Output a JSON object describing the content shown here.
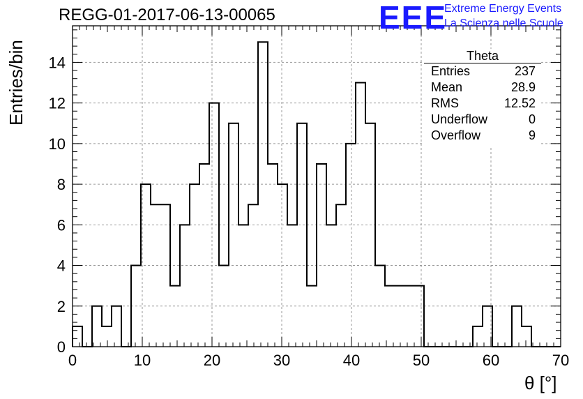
{
  "title": "REGG-01-2017-06-13-00065",
  "logo": {
    "mark": "EEE",
    "line1": "Extreme Energy Events",
    "line2": "La Scienza nelle Scuole",
    "color": "#1a1aff"
  },
  "stats": {
    "name": "Theta",
    "rows": [
      {
        "key": "Entries",
        "value": "237"
      },
      {
        "key": "Mean",
        "value": "28.9"
      },
      {
        "key": "RMS",
        "value": "12.52"
      },
      {
        "key": "Underflow",
        "value": "0"
      },
      {
        "key": "Overflow",
        "value": "9"
      }
    ]
  },
  "chart_data": {
    "type": "bar",
    "histogram": true,
    "xlabel": "θ [°]",
    "ylabel": "Entries/bin",
    "xlim": [
      0,
      70
    ],
    "ylim": [
      0,
      15.8
    ],
    "bin_width": 1.4,
    "bin_start": 0,
    "grid": true,
    "xticks": [
      0,
      10,
      20,
      30,
      40,
      50,
      60,
      70
    ],
    "yticks": [
      0,
      2,
      4,
      6,
      8,
      10,
      12,
      14
    ],
    "values": [
      1,
      0,
      2,
      1,
      2,
      0,
      4,
      8,
      7,
      7,
      3,
      6,
      8,
      9,
      12,
      4,
      11,
      6,
      7,
      15,
      9,
      8,
      6,
      11,
      3,
      9,
      6,
      7,
      10,
      13,
      11,
      4,
      3,
      3,
      3,
      3,
      0,
      0,
      0,
      0,
      0,
      1,
      2,
      0,
      0,
      2,
      1,
      0,
      0,
      0
    ]
  }
}
